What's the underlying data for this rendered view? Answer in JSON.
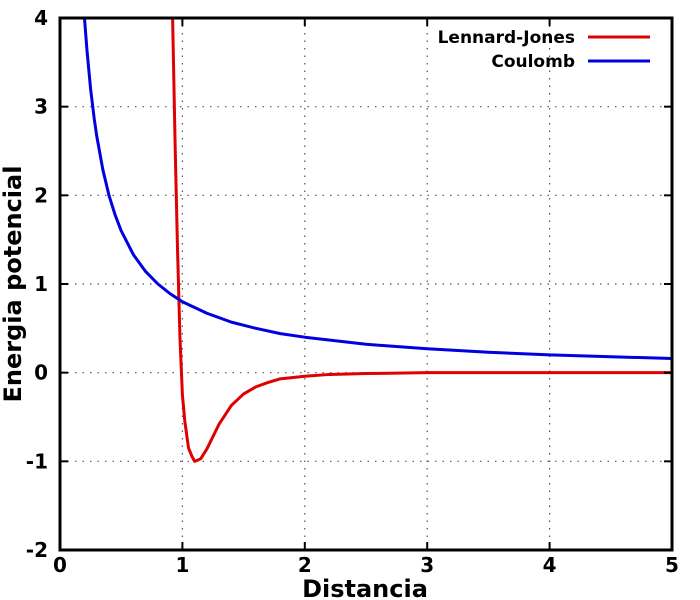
{
  "chart_data": {
    "type": "line",
    "title": "",
    "xlabel": "Distancia",
    "ylabel": "Energia potencial",
    "xlim": [
      0,
      5
    ],
    "ylim": [
      -2,
      4
    ],
    "xticks": [
      "0",
      "1",
      "2",
      "3",
      "4",
      "5"
    ],
    "yticks": [
      "-2",
      "-1",
      "0",
      "1",
      "2",
      "3",
      "4"
    ],
    "grid": "dotted",
    "legend_position": "top-right",
    "series": [
      {
        "name": "Lennard-Jones",
        "color": "#e00000",
        "x": [
          0.92,
          0.94,
          0.96,
          0.98,
          1.0,
          1.02,
          1.05,
          1.08,
          1.1,
          1.12,
          1.15,
          1.2,
          1.25,
          1.3,
          1.4,
          1.5,
          1.6,
          1.7,
          1.8,
          2.0,
          2.2,
          2.5,
          3.0,
          3.5,
          4.0,
          4.5,
          5.0
        ],
        "y": [
          4.0,
          2.6,
          1.4,
          0.4,
          -0.25,
          -0.55,
          -0.85,
          -0.95,
          -1.0,
          -0.99,
          -0.97,
          -0.86,
          -0.72,
          -0.58,
          -0.37,
          -0.24,
          -0.16,
          -0.11,
          -0.07,
          -0.04,
          -0.02,
          -0.01,
          0.0,
          0.0,
          0.0,
          0.0,
          0.0
        ]
      },
      {
        "name": "Coulomb",
        "color": "#0000e0",
        "x": [
          0.2,
          0.22,
          0.25,
          0.28,
          0.3,
          0.35,
          0.4,
          0.45,
          0.5,
          0.6,
          0.7,
          0.8,
          0.9,
          1.0,
          1.2,
          1.4,
          1.6,
          1.8,
          2.0,
          2.5,
          3.0,
          3.5,
          4.0,
          4.5,
          5.0
        ],
        "y": [
          4.0,
          3.64,
          3.2,
          2.86,
          2.67,
          2.29,
          2.0,
          1.78,
          1.6,
          1.33,
          1.14,
          1.0,
          0.89,
          0.8,
          0.67,
          0.57,
          0.5,
          0.44,
          0.4,
          0.32,
          0.27,
          0.23,
          0.2,
          0.18,
          0.16
        ]
      }
    ]
  }
}
